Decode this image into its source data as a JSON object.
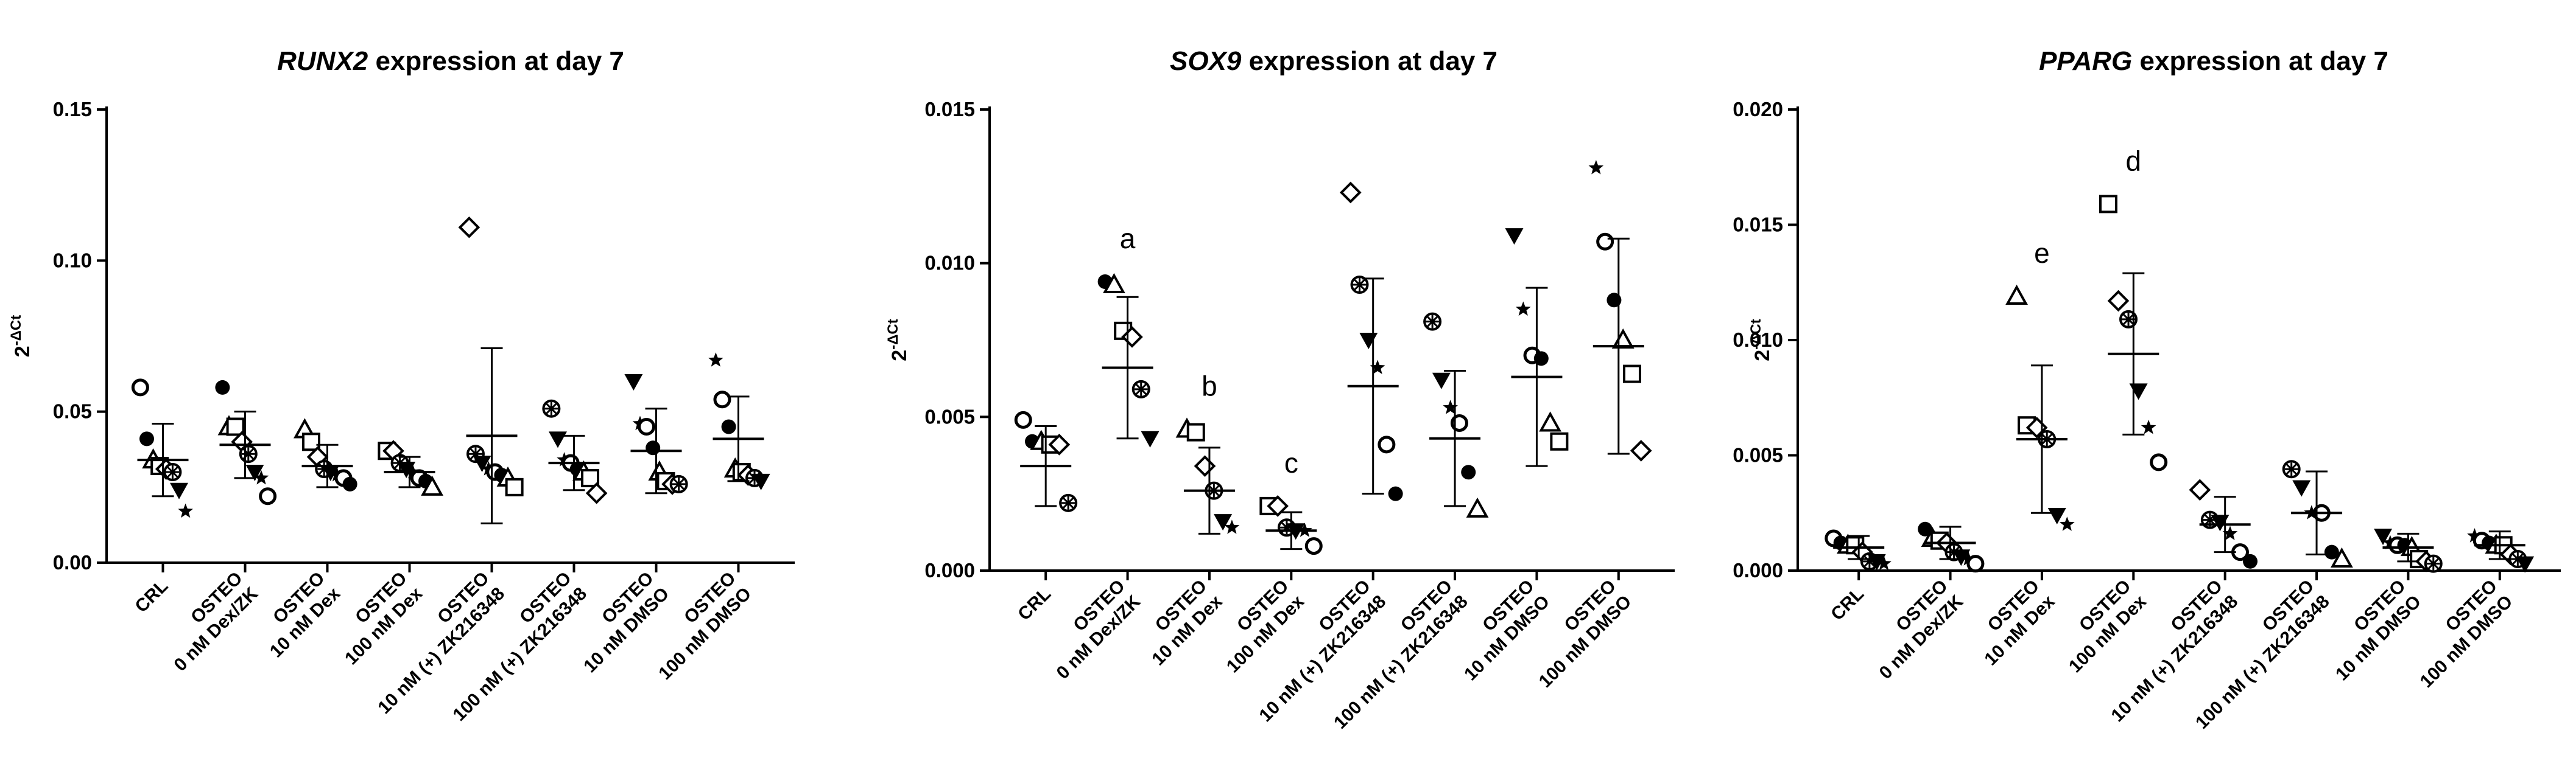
{
  "chart_data": [
    {
      "type": "scatter",
      "title_gene": "RUNX2",
      "title_rest": " expression at day 7",
      "ylabel_base": "2",
      "ylabel_exp": "-ΔCt",
      "xlabel": "",
      "ylim": [
        0,
        0.15
      ],
      "yticks": [
        0,
        0.05,
        0.1,
        0.15
      ],
      "ytick_labels": [
        "0.00",
        "0.05",
        "0.10",
        "0.15"
      ],
      "categories": [
        [
          "CRL"
        ],
        [
          "OSTEO",
          "0 nM Dex/ZK"
        ],
        [
          "OSTEO",
          "10 nM Dex"
        ],
        [
          "OSTEO",
          "100 nM Dex"
        ],
        [
          "OSTEO",
          "10 nM (+) ZK216348"
        ],
        [
          "OSTEO",
          "100 nM (+) ZK216348"
        ],
        [
          "OSTEO",
          "10 nM DMSO"
        ],
        [
          "OSTEO",
          "100 nM DMSO"
        ]
      ],
      "mean": [
        0.034,
        0.039,
        0.032,
        0.03,
        0.042,
        0.033,
        0.037,
        0.041
      ],
      "sd": [
        0.012,
        0.011,
        0.007,
        0.005,
        0.029,
        0.009,
        0.014,
        0.014
      ],
      "annotations": [
        "",
        "",
        "",
        "",
        "",
        "",
        "",
        ""
      ],
      "points": [
        [
          0.058,
          0.041,
          0.034,
          0.032,
          0.031,
          0.03,
          0.024,
          0.017
        ],
        [
          0.058,
          0.045,
          0.045,
          0.04,
          0.036,
          0.03,
          0.028,
          0.022
        ],
        [
          0.044,
          0.04,
          0.035,
          0.031,
          0.03,
          0.029,
          0.028,
          0.026
        ],
        [
          0.037,
          0.037,
          0.033,
          0.031,
          0.03,
          0.028,
          0.027,
          0.025
        ],
        [
          0.111,
          0.036,
          0.033,
          0.031,
          0.03,
          0.029,
          0.028,
          0.025
        ],
        [
          0.051,
          0.041,
          0.034,
          0.033,
          0.031,
          0.03,
          0.028,
          0.023
        ],
        [
          0.06,
          0.046,
          0.045,
          0.038,
          0.03,
          0.027,
          0.026,
          0.026
        ],
        [
          0.067,
          0.054,
          0.045,
          0.031,
          0.03,
          0.029,
          0.028,
          0.027
        ]
      ]
    },
    {
      "type": "scatter",
      "title_gene": "SOX9",
      "title_rest": " expression at day 7",
      "ylabel_base": "2",
      "ylabel_exp": "-ΔCt",
      "xlabel": "",
      "ylim": [
        0,
        0.015
      ],
      "yticks": [
        0,
        0.005,
        0.01,
        0.015
      ],
      "ytick_labels": [
        "0.000",
        "0.005",
        "0.010",
        "0.015"
      ],
      "categories": [
        [
          "CRL"
        ],
        [
          "OSTEO",
          "0 nM Dex/ZK"
        ],
        [
          "OSTEO",
          "10 nM Dex"
        ],
        [
          "OSTEO",
          "100 nM Dex"
        ],
        [
          "OSTEO",
          "10 nM (+) ZK216348"
        ],
        [
          "OSTEO",
          "100 nM (+) ZK216348"
        ],
        [
          "OSTEO",
          "10 nM DMSO"
        ],
        [
          "OSTEO",
          "100 nM DMSO"
        ]
      ],
      "mean": [
        0.0034,
        0.0066,
        0.0026,
        0.0013,
        0.006,
        0.0043,
        0.0063,
        0.0073
      ],
      "sd": [
        0.0013,
        0.0023,
        0.0014,
        0.0006,
        0.0035,
        0.0022,
        0.0029,
        0.0035
      ],
      "annotations": [
        "",
        "a",
        "b",
        "c",
        "",
        "",
        "",
        ""
      ],
      "points": [
        [
          0.0049,
          0.0042,
          0.0042,
          0.0041,
          0.0041,
          0.0022
        ],
        [
          0.0094,
          0.0093,
          0.0078,
          0.0076,
          0.0059,
          0.0043
        ],
        [
          0.0046,
          0.0045,
          0.0034,
          0.0026,
          0.0016,
          0.0014
        ],
        [
          0.0021,
          0.0021,
          0.0014,
          0.0013,
          0.0013,
          0.0008
        ],
        [
          0.0123,
          0.0093,
          0.0075,
          0.0066,
          0.0041,
          0.0025
        ],
        [
          0.0081,
          0.0062,
          0.0053,
          0.0048,
          0.0032,
          0.002
        ],
        [
          0.0109,
          0.0085,
          0.007,
          0.0069,
          0.0048,
          0.0042
        ],
        [
          0.0131,
          0.0107,
          0.0088,
          0.0075,
          0.0064,
          0.0039
        ]
      ]
    },
    {
      "type": "scatter",
      "title_gene": "PPARG",
      "title_rest": " expression at day 7",
      "ylabel_base": "2",
      "ylabel_exp": "-ΔCt",
      "xlabel": "",
      "ylim": [
        0,
        0.02
      ],
      "yticks": [
        0,
        0.005,
        0.01,
        0.015,
        0.02
      ],
      "ytick_labels": [
        "0.000",
        "0.005",
        "0.010",
        "0.015",
        "0.020"
      ],
      "categories": [
        [
          "CRL"
        ],
        [
          "OSTEO",
          "0 nM Dex/ZK"
        ],
        [
          "OSTEO",
          "10 nM Dex"
        ],
        [
          "OSTEO",
          "100 nM Dex"
        ],
        [
          "OSTEO",
          "10 nM (+) ZK216348"
        ],
        [
          "OSTEO",
          "100 nM (+) ZK216348"
        ],
        [
          "OSTEO",
          "10 nM DMSO"
        ],
        [
          "OSTEO",
          "100 nM DMSO"
        ]
      ],
      "mean": [
        0.001,
        0.0012,
        0.0057,
        0.0094,
        0.002,
        0.0025,
        0.001,
        0.0011
      ],
      "sd": [
        0.0005,
        0.0007,
        0.0032,
        0.0035,
        0.0012,
        0.0018,
        0.0006,
        0.0006
      ],
      "annotations": [
        "",
        "",
        "e",
        "d",
        "",
        "",
        "",
        ""
      ],
      "points": [
        [
          0.0014,
          0.0012,
          0.0011,
          0.0011,
          0.0008,
          0.0004,
          0.0004,
          0.0003
        ],
        [
          0.0018,
          0.0014,
          0.0013,
          0.0012,
          0.0008,
          0.0006,
          0.0005,
          0.0003
        ],
        [
          0.0119,
          0.0063,
          0.0062,
          0.0057,
          0.0024,
          0.002
        ],
        [
          0.0159,
          0.0117,
          0.0109,
          0.0078,
          0.0062,
          0.0047
        ],
        [
          0.0035,
          0.0022,
          0.0021,
          0.0016,
          0.0008,
          0.0004
        ],
        [
          0.0044,
          0.0036,
          0.0025,
          0.0025,
          0.0008,
          0.0005
        ],
        [
          0.0015,
          0.0012,
          0.0011,
          0.0011,
          0.001,
          0.0005,
          0.0004,
          0.0003
        ],
        [
          0.0015,
          0.0013,
          0.0012,
          0.0011,
          0.0011,
          0.0007,
          0.0005,
          0.0003
        ]
      ]
    }
  ],
  "marker_cycle": [
    "circle-open",
    "circle",
    "triangle-open",
    "square-open",
    "diamond-open",
    "circle-cross",
    "triangle-down",
    "star"
  ]
}
